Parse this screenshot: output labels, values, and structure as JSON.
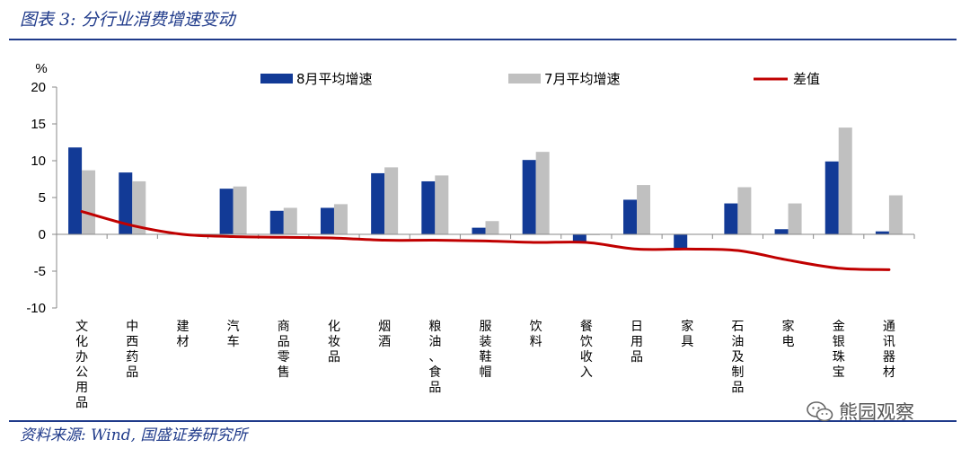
{
  "figure": {
    "title": "图表 3:  分行业消费增速变动",
    "source": "资料来源:  Wind,  国盛证券研究所",
    "watermark": "熊园观察",
    "watermark_icon": "wechat-icon"
  },
  "chart_data": {
    "type": "bar",
    "unit_label": "%",
    "categories": [
      "文化办公用品",
      "中西药品",
      "建材",
      "汽车",
      "商品零售",
      "化妆品",
      "烟酒",
      "粮油、食品",
      "服装鞋帽",
      "饮料",
      "餐饮收入",
      "日用品",
      "家具",
      "石油及制品",
      "家电",
      "金银珠宝",
      "通讯器材"
    ],
    "series": [
      {
        "name": "8月平均增速",
        "type": "bar",
        "color": "#123a96",
        "values": [
          11.8,
          8.4,
          0,
          6.2,
          3.2,
          3.6,
          8.3,
          7.2,
          0.9,
          10.1,
          -1.2,
          4.7,
          -2.0,
          4.2,
          0.7,
          9.9,
          0.4
        ]
      },
      {
        "name": "7月平均增速",
        "type": "bar",
        "color": "#c0c0c0",
        "values": [
          8.7,
          7.2,
          0,
          6.5,
          3.6,
          4.1,
          9.1,
          8.0,
          1.8,
          11.2,
          -0.1,
          6.7,
          0,
          6.4,
          4.2,
          14.5,
          5.3
        ]
      },
      {
        "name": "差值",
        "type": "line",
        "color": "#c00000",
        "values": [
          3.1,
          1.2,
          0,
          -0.3,
          -0.4,
          -0.5,
          -0.8,
          -0.8,
          -0.9,
          -1.1,
          -1.1,
          -2.0,
          -2.0,
          -2.2,
          -3.5,
          -4.6,
          -4.8
        ]
      }
    ],
    "ylim": [
      -10,
      20
    ],
    "yticks": [
      -10,
      -5,
      0,
      5,
      10,
      15,
      20
    ],
    "legend_position": "top",
    "grid": false
  }
}
